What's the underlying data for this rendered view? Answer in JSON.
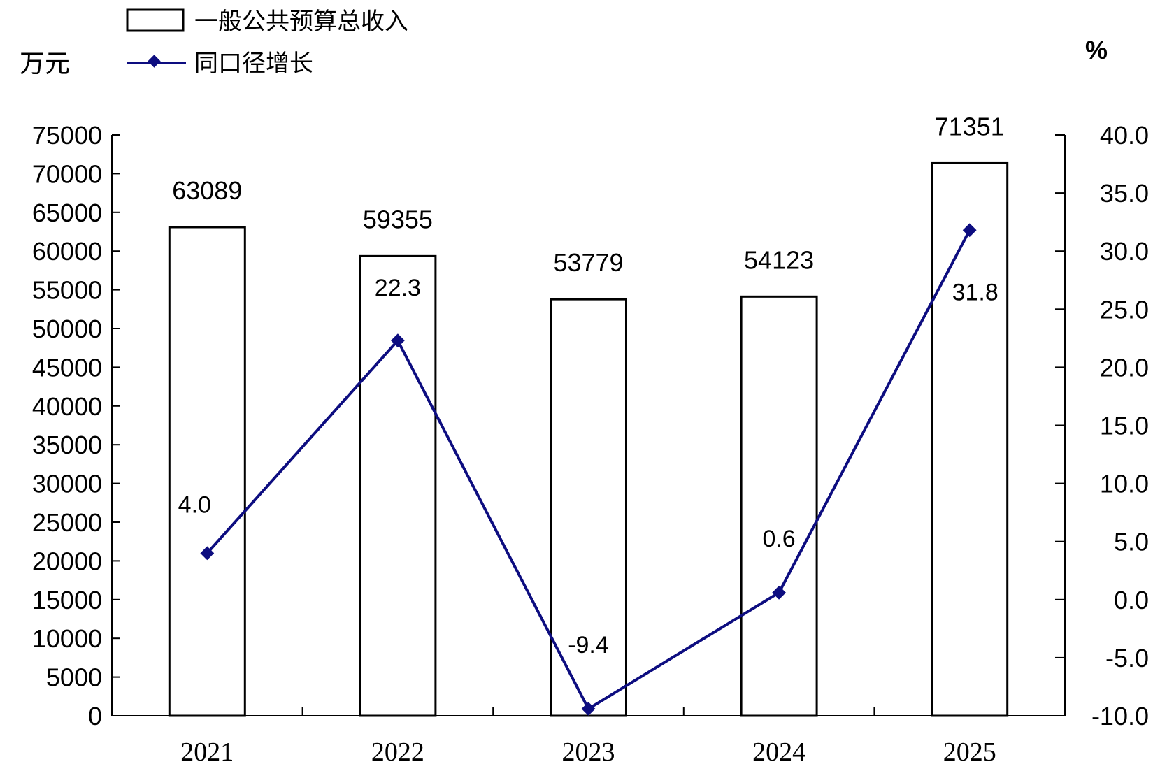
{
  "chart_data": {
    "type": "bar",
    "categories": [
      "2021",
      "2022",
      "2023",
      "2024",
      "2025"
    ],
    "series": [
      {
        "name": "一般公共预算总收入",
        "type": "bar",
        "axis": "left",
        "values": [
          63089,
          59355,
          53779,
          54123,
          71351
        ],
        "labels": [
          "63089",
          "59355",
          "53779",
          "54123",
          "71351"
        ]
      },
      {
        "name": "同口径增长",
        "type": "line",
        "axis": "right",
        "values": [
          4.0,
          22.3,
          -9.4,
          0.6,
          31.8
        ],
        "labels": [
          "4.0",
          "22.3",
          "-9.4",
          "0.6",
          "31.8"
        ]
      }
    ],
    "ylabel": "万元",
    "y2label": "%",
    "ylim": [
      0,
      75000
    ],
    "y2lim": [
      -10,
      40
    ],
    "yticks": [
      "0",
      "5000",
      "10000",
      "15000",
      "20000",
      "25000",
      "30000",
      "35000",
      "40000",
      "45000",
      "50000",
      "55000",
      "60000",
      "65000",
      "70000",
      "75000"
    ],
    "y2ticks": [
      "-10.0",
      "-5.0",
      "0.0",
      "5.0",
      "10.0",
      "15.0",
      "20.0",
      "25.0",
      "30.0",
      "35.0",
      "40.0"
    ],
    "grid": false,
    "legend_position": "top-left",
    "colors": {
      "bar_fill": "#ffffff",
      "bar_stroke": "#000000",
      "line": "#0d0d80"
    }
  }
}
